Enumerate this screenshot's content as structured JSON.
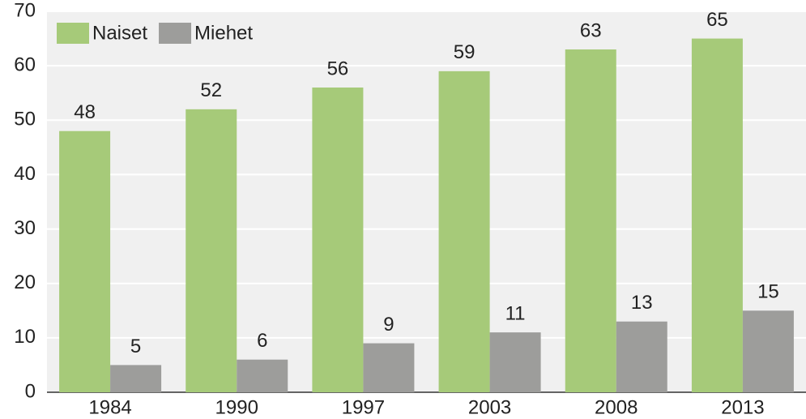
{
  "chart_data": {
    "type": "bar",
    "categories": [
      "1984",
      "1990",
      "1997",
      "2003",
      "2008",
      "2013"
    ],
    "series": [
      {
        "name": "Naiset",
        "color": "#a6ca79",
        "values": [
          48,
          52,
          56,
          59,
          63,
          65
        ]
      },
      {
        "name": "Miehet",
        "color": "#9d9d9b",
        "values": [
          5,
          6,
          9,
          11,
          13,
          15
        ]
      }
    ],
    "ylim": [
      0,
      70
    ],
    "yticks": [
      0,
      10,
      20,
      30,
      40,
      50,
      60,
      70
    ],
    "grid": true,
    "legend": "top-left"
  }
}
